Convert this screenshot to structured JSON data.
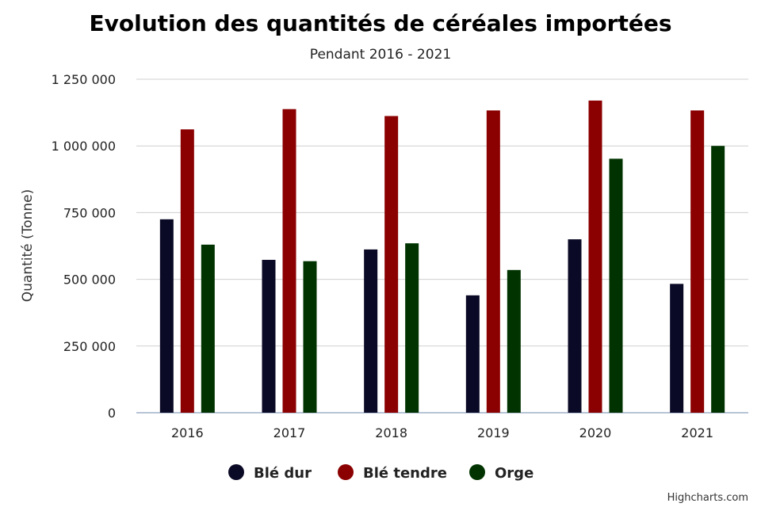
{
  "chart_data": {
    "type": "bar",
    "title": "Evolution des quantités de céréales importées",
    "subtitle": "Pendant 2016 - 2021",
    "ylabel": "Quantité (Tonne)",
    "xlabel": "",
    "categories": [
      "2016",
      "2017",
      "2018",
      "2019",
      "2020",
      "2021"
    ],
    "ylim": [
      0,
      1250000
    ],
    "yticks": [
      0,
      250000,
      500000,
      750000,
      1000000,
      1250000
    ],
    "ytick_labels": [
      "0",
      "250 000",
      "500 000",
      "750 000",
      "1 000 000",
      "1 250 000"
    ],
    "grid": true,
    "legend_position": "bottom-center",
    "series": [
      {
        "name": "Blé dur",
        "color": "#0b0a26",
        "values": [
          725000,
          573000,
          612000,
          440000,
          650000,
          483000
        ]
      },
      {
        "name": "Blé tendre",
        "color": "#8b0000",
        "values": [
          1062000,
          1138000,
          1112000,
          1133000,
          1170000,
          1133000
        ]
      },
      {
        "name": "Orge",
        "color": "#003300",
        "values": [
          630000,
          568000,
          635000,
          535000,
          952000,
          1000000
        ]
      }
    ],
    "credits": "Highcharts.com"
  }
}
